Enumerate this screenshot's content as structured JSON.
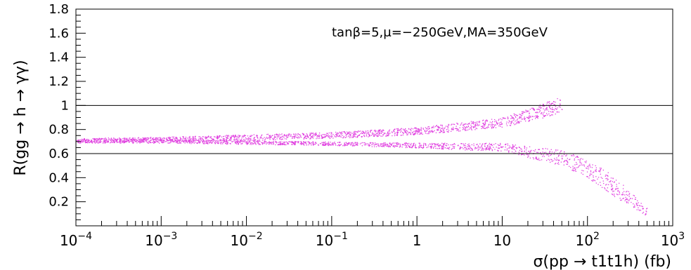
{
  "chart_data": {
    "type": "scatter",
    "title": "",
    "xlabel": "σ(pp → t1t1h) (fb)",
    "ylabel": "R(gg → h → γγ)",
    "xscale": "log",
    "xlim": [
      0.0001,
      1000
    ],
    "ylim": [
      0,
      1.8
    ],
    "grid": false,
    "legend": "none",
    "point_color": "#e040e0",
    "annotation": "tanβ=5,μ=−250GeV,MA=350GeV",
    "y_ticks": [
      "0.2",
      "0.4",
      "0.6",
      "0.8",
      "1",
      "1.2",
      "1.4",
      "1.6",
      "1.8"
    ],
    "y_tick_values": [
      0.2,
      0.4,
      0.6,
      0.8,
      1.0,
      1.2,
      1.4,
      1.6,
      1.8
    ],
    "x_ticks": [
      {
        "value": 0.0001,
        "base": "10",
        "exp": "−4"
      },
      {
        "value": 0.001,
        "base": "10",
        "exp": "−3"
      },
      {
        "value": 0.01,
        "base": "10",
        "exp": "−2"
      },
      {
        "value": 0.1,
        "base": "10",
        "exp": "−1"
      },
      {
        "value": 1,
        "base": "1",
        "exp": ""
      },
      {
        "value": 10,
        "base": "10",
        "exp": ""
      },
      {
        "value": 100,
        "base": "10",
        "exp": "2"
      },
      {
        "value": 1000,
        "base": "10",
        "exp": "3"
      }
    ],
    "reference_lines": [
      0.6,
      1.0
    ],
    "bands": [
      {
        "name": "",
        "x": [
          0.0001,
          0.001,
          0.01,
          0.1,
          1,
          10,
          30,
          50
        ],
        "y_low": [
          0.69,
          0.7,
          0.71,
          0.73,
          0.76,
          0.82,
          0.9,
          0.95
        ],
        "y_high": [
          0.73,
          0.74,
          0.76,
          0.78,
          0.82,
          0.9,
          1.02,
          1.08
        ]
      },
      {
        "name": "",
        "x": [
          0.0001,
          0.001,
          0.01,
          0.1,
          1,
          10,
          50,
          100,
          200,
          500
        ],
        "y_low": [
          0.69,
          0.69,
          0.68,
          0.67,
          0.65,
          0.62,
          0.5,
          0.4,
          0.25,
          0.08
        ],
        "y_high": [
          0.73,
          0.72,
          0.71,
          0.7,
          0.69,
          0.69,
          0.63,
          0.55,
          0.42,
          0.15
        ]
      }
    ]
  }
}
